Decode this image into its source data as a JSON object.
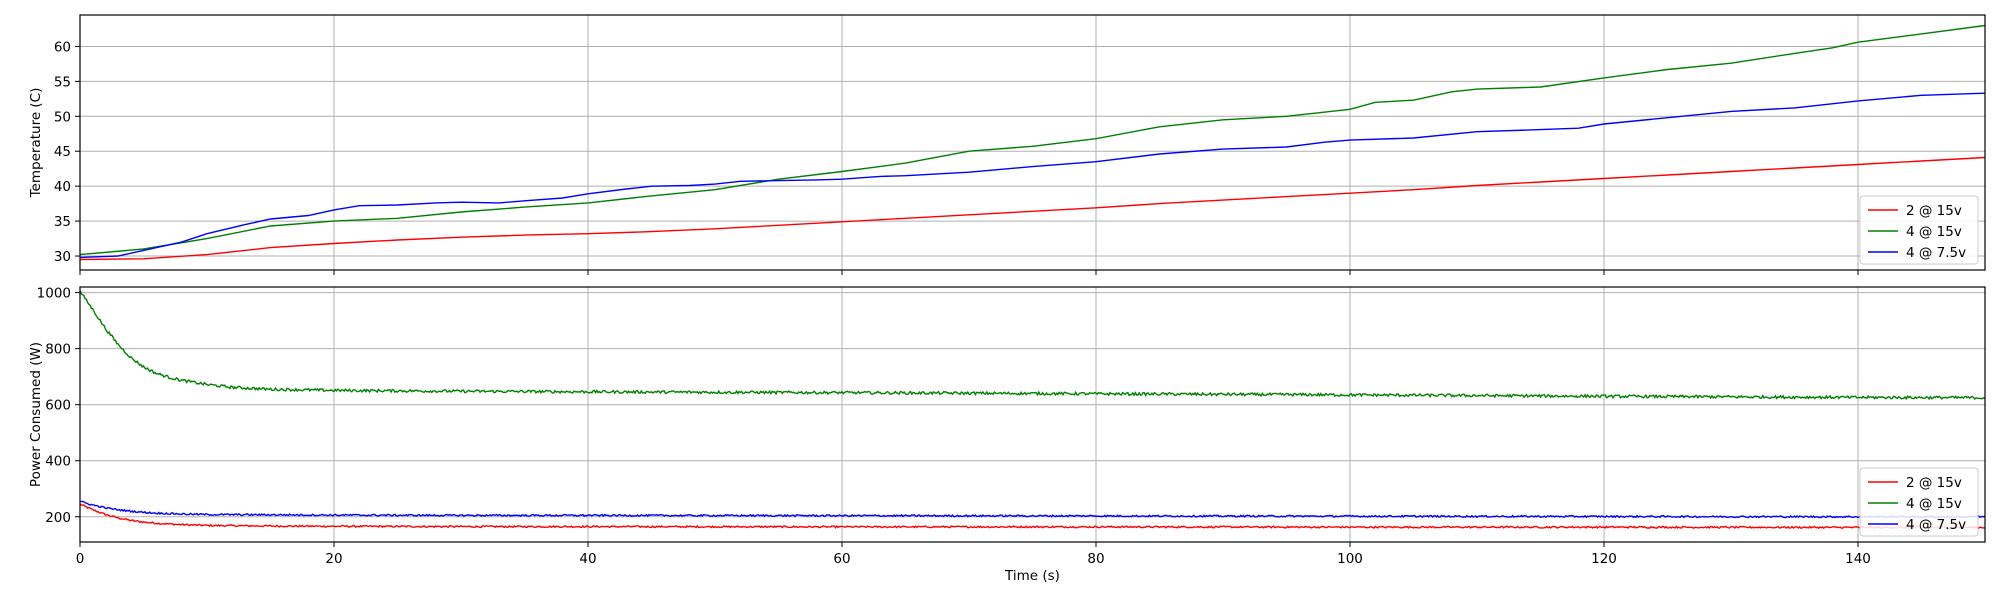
{
  "chart_data": [
    {
      "type": "line",
      "title": "",
      "xlabel": "",
      "ylabel": "Temperature (C)",
      "xlim": [
        0,
        150
      ],
      "ylim": [
        28,
        64.5
      ],
      "x_ticks": [
        0,
        20,
        40,
        60,
        80,
        100,
        120,
        140
      ],
      "y_ticks": [
        30,
        35,
        40,
        45,
        50,
        55,
        60
      ],
      "y_tick_labels": [
        "30",
        "35",
        "40",
        "45",
        "50",
        "55",
        "60"
      ],
      "show_x_tick_labels": false,
      "grid": true,
      "legend_position": "lower-right",
      "series": [
        {
          "name": "2 @ 15v",
          "color": "#ff0000",
          "x": [
            0,
            5,
            10,
            15,
            20,
            25,
            30,
            35,
            40,
            45,
            50,
            55,
            60,
            65,
            70,
            75,
            80,
            85,
            90,
            95,
            100,
            105,
            110,
            115,
            120,
            125,
            130,
            135,
            140,
            145,
            150
          ],
          "y": [
            29.5,
            29.6,
            30.2,
            31.2,
            31.8,
            32.3,
            32.7,
            33.0,
            33.2,
            33.5,
            33.9,
            34.4,
            34.9,
            35.4,
            35.9,
            36.4,
            36.9,
            37.5,
            38.0,
            38.5,
            39.0,
            39.5,
            40.1,
            40.6,
            41.1,
            41.6,
            42.1,
            42.6,
            43.1,
            43.6,
            44.1
          ]
        },
        {
          "name": "4 @ 15v",
          "color": "#008000",
          "x": [
            0,
            5,
            10,
            15,
            20,
            25,
            30,
            35,
            40,
            45,
            50,
            55,
            60,
            65,
            70,
            75,
            80,
            85,
            90,
            95,
            100,
            102,
            105,
            108,
            110,
            115,
            120,
            125,
            130,
            135,
            138,
            140,
            145,
            150
          ],
          "y": [
            30.2,
            31.0,
            32.5,
            34.3,
            35.0,
            35.4,
            36.3,
            37.0,
            37.6,
            38.6,
            39.5,
            41.0,
            42.1,
            43.3,
            45.0,
            45.7,
            46.8,
            48.5,
            49.5,
            50.0,
            51.0,
            52.0,
            52.3,
            53.5,
            53.9,
            54.2,
            55.5,
            56.7,
            57.6,
            59.0,
            59.8,
            60.6,
            61.8,
            63.0
          ]
        },
        {
          "name": "4 @ 7.5v",
          "color": "#0000ff",
          "x": [
            0,
            3,
            5,
            8,
            10,
            13,
            15,
            18,
            20,
            22,
            25,
            28,
            30,
            33,
            35,
            38,
            40,
            43,
            45,
            48,
            50,
            52,
            55,
            58,
            60,
            63,
            65,
            70,
            75,
            80,
            85,
            90,
            95,
            98,
            100,
            105,
            110,
            115,
            118,
            120,
            125,
            130,
            135,
            140,
            145,
            150
          ],
          "y": [
            29.8,
            30.0,
            30.8,
            32.0,
            33.2,
            34.5,
            35.3,
            35.8,
            36.6,
            37.2,
            37.3,
            37.6,
            37.7,
            37.6,
            37.9,
            38.3,
            38.9,
            39.6,
            40.0,
            40.1,
            40.3,
            40.7,
            40.8,
            40.9,
            41.0,
            41.4,
            41.5,
            42.0,
            42.8,
            43.5,
            44.6,
            45.3,
            45.6,
            46.3,
            46.6,
            46.9,
            47.8,
            48.1,
            48.3,
            48.9,
            49.8,
            50.7,
            51.2,
            52.2,
            53.0,
            53.3
          ]
        }
      ]
    },
    {
      "type": "line",
      "title": "",
      "xlabel": "Time (s)",
      "ylabel": "Power Consumed (W)",
      "xlim": [
        0,
        150
      ],
      "ylim": [
        110,
        1020
      ],
      "x_ticks": [
        0,
        20,
        40,
        60,
        80,
        100,
        120,
        140
      ],
      "x_tick_labels": [
        "0",
        "20",
        "40",
        "60",
        "80",
        "100",
        "120",
        "140"
      ],
      "y_ticks": [
        200,
        400,
        600,
        800,
        1000
      ],
      "y_tick_labels": [
        "200",
        "400",
        "600",
        "800",
        "1000"
      ],
      "grid": true,
      "legend_position": "lower-right",
      "series": [
        {
          "name": "2 @ 15v",
          "color": "#ff0000",
          "x": [
            0,
            1,
            2,
            3,
            4,
            5,
            6,
            8,
            10,
            15,
            20,
            30,
            40,
            60,
            80,
            100,
            120,
            140,
            150
          ],
          "y": [
            245,
            225,
            208,
            196,
            187,
            181,
            177,
            172,
            169,
            167,
            166,
            165,
            165,
            164,
            164,
            163,
            163,
            162,
            162
          ],
          "noise": 3
        },
        {
          "name": "4 @ 15v",
          "color": "#008000",
          "x": [
            0,
            1,
            2,
            3,
            4,
            5,
            6,
            7,
            8,
            10,
            12,
            15,
            20,
            30,
            40,
            60,
            80,
            100,
            120,
            140,
            150
          ],
          "y": [
            1005,
            940,
            872,
            815,
            768,
            735,
            712,
            698,
            687,
            672,
            662,
            655,
            651,
            648,
            646,
            643,
            639,
            635,
            630,
            626,
            625
          ],
          "noise": 5
        },
        {
          "name": "4 @ 7.5v",
          "color": "#0000ff",
          "x": [
            0,
            1,
            2,
            3,
            4,
            5,
            6,
            8,
            10,
            15,
            20,
            30,
            40,
            60,
            80,
            100,
            120,
            140,
            150
          ],
          "y": [
            255,
            242,
            232,
            225,
            220,
            216,
            213,
            210,
            208,
            207,
            206,
            205,
            205,
            204,
            203,
            202,
            201,
            200,
            200
          ],
          "noise": 3
        }
      ]
    }
  ]
}
